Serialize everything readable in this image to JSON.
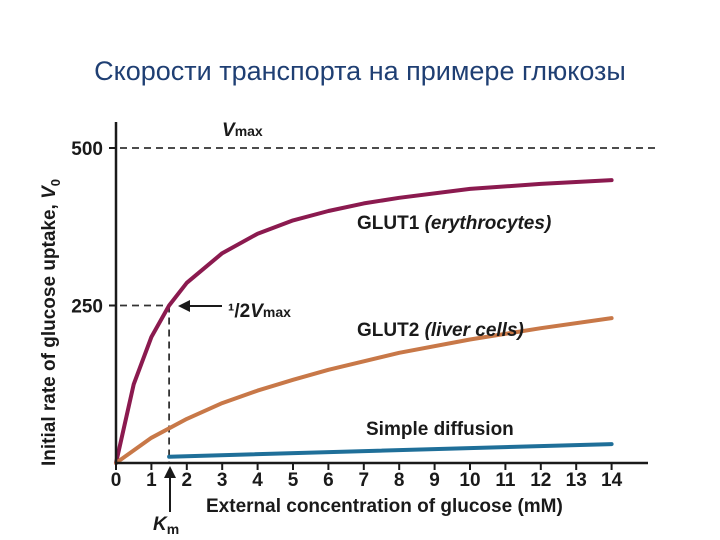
{
  "slide_title": "Скорости транспорта на примере глюкозы",
  "chart_data": {
    "type": "line",
    "xlabel": "External concentration of glucose (mM)",
    "ylabel_main": "Initial rate of glucose uptake, ",
    "ylabel_var": "V",
    "ylabel_sub": "0",
    "x_ticks": [
      0,
      1,
      2,
      3,
      4,
      5,
      6,
      7,
      8,
      9,
      10,
      11,
      12,
      13,
      14
    ],
    "y_ticks": [
      250,
      500
    ],
    "xlim": [
      0,
      14.6
    ],
    "ylim": [
      0,
      530
    ],
    "vmax": 500,
    "km": 1.5,
    "series": [
      {
        "name": "GLUT1",
        "name_note": "(erythrocytes)",
        "x": [
          0,
          0.5,
          1,
          1.5,
          2,
          3,
          4,
          5,
          6,
          7,
          8,
          10,
          12,
          14
        ],
        "y": [
          0,
          125,
          200,
          250,
          286,
          333,
          364,
          385,
          400,
          412,
          421,
          435,
          443,
          449
        ],
        "color": "#8b1a4f"
      },
      {
        "name": "GLUT2",
        "name_note": "(liver cells)",
        "x": [
          0,
          1,
          2,
          3,
          4,
          5,
          6,
          8,
          10,
          12,
          14
        ],
        "y": [
          0,
          40,
          70,
          95,
          115,
          132,
          148,
          175,
          196,
          214,
          230
        ],
        "color": "#c87848"
      },
      {
        "name": "Simple diffusion",
        "name_note": "",
        "x": [
          1.5,
          14
        ],
        "y": [
          10,
          30
        ],
        "color": "#1f6f99"
      }
    ],
    "annotations": {
      "vmax_var": "V",
      "vmax_sub": "max",
      "half_prefix": "¹/2",
      "half_var": "V",
      "half_sub": "max",
      "km_var": "K",
      "km_sub": "m"
    }
  }
}
